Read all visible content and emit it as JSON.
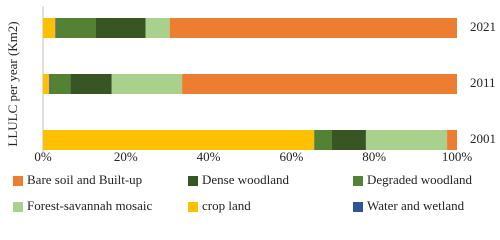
{
  "chart_data": {
    "type": "stacked-bar-horizontal",
    "y_label": "LLULC per year (Km2)",
    "categories": [
      "2021",
      "2011",
      "2001"
    ],
    "series": [
      {
        "name": "crop land",
        "color": "#ffc000",
        "values": [
          3,
          1.5,
          65.5
        ]
      },
      {
        "name": "Water and wetland",
        "color": "#2f5597",
        "values": [
          0.3,
          0.3,
          0
        ]
      },
      {
        "name": "Degraded woodland",
        "color": "#548235",
        "values": [
          9.5,
          4.8,
          4.3
        ]
      },
      {
        "name": "Dense woodland",
        "color": "#375623",
        "values": [
          12,
          10,
          8.2
        ]
      },
      {
        "name": "Forest-savannah mosaic",
        "color": "#a9d18e",
        "values": [
          5.8,
          17,
          19.6
        ]
      },
      {
        "name": "Bare soil and Built-up",
        "color": "#ed7d31",
        "values": [
          69.4,
          66.4,
          2.4
        ]
      }
    ],
    "xlim": [
      0,
      100
    ],
    "xticks": [
      {
        "value": 0,
        "label": "0%"
      },
      {
        "value": 20,
        "label": "20%"
      },
      {
        "value": 40,
        "label": "40%"
      },
      {
        "value": 60,
        "label": "60%"
      },
      {
        "value": 80,
        "label": "80%"
      },
      {
        "value": 100,
        "label": "100%"
      }
    ]
  }
}
